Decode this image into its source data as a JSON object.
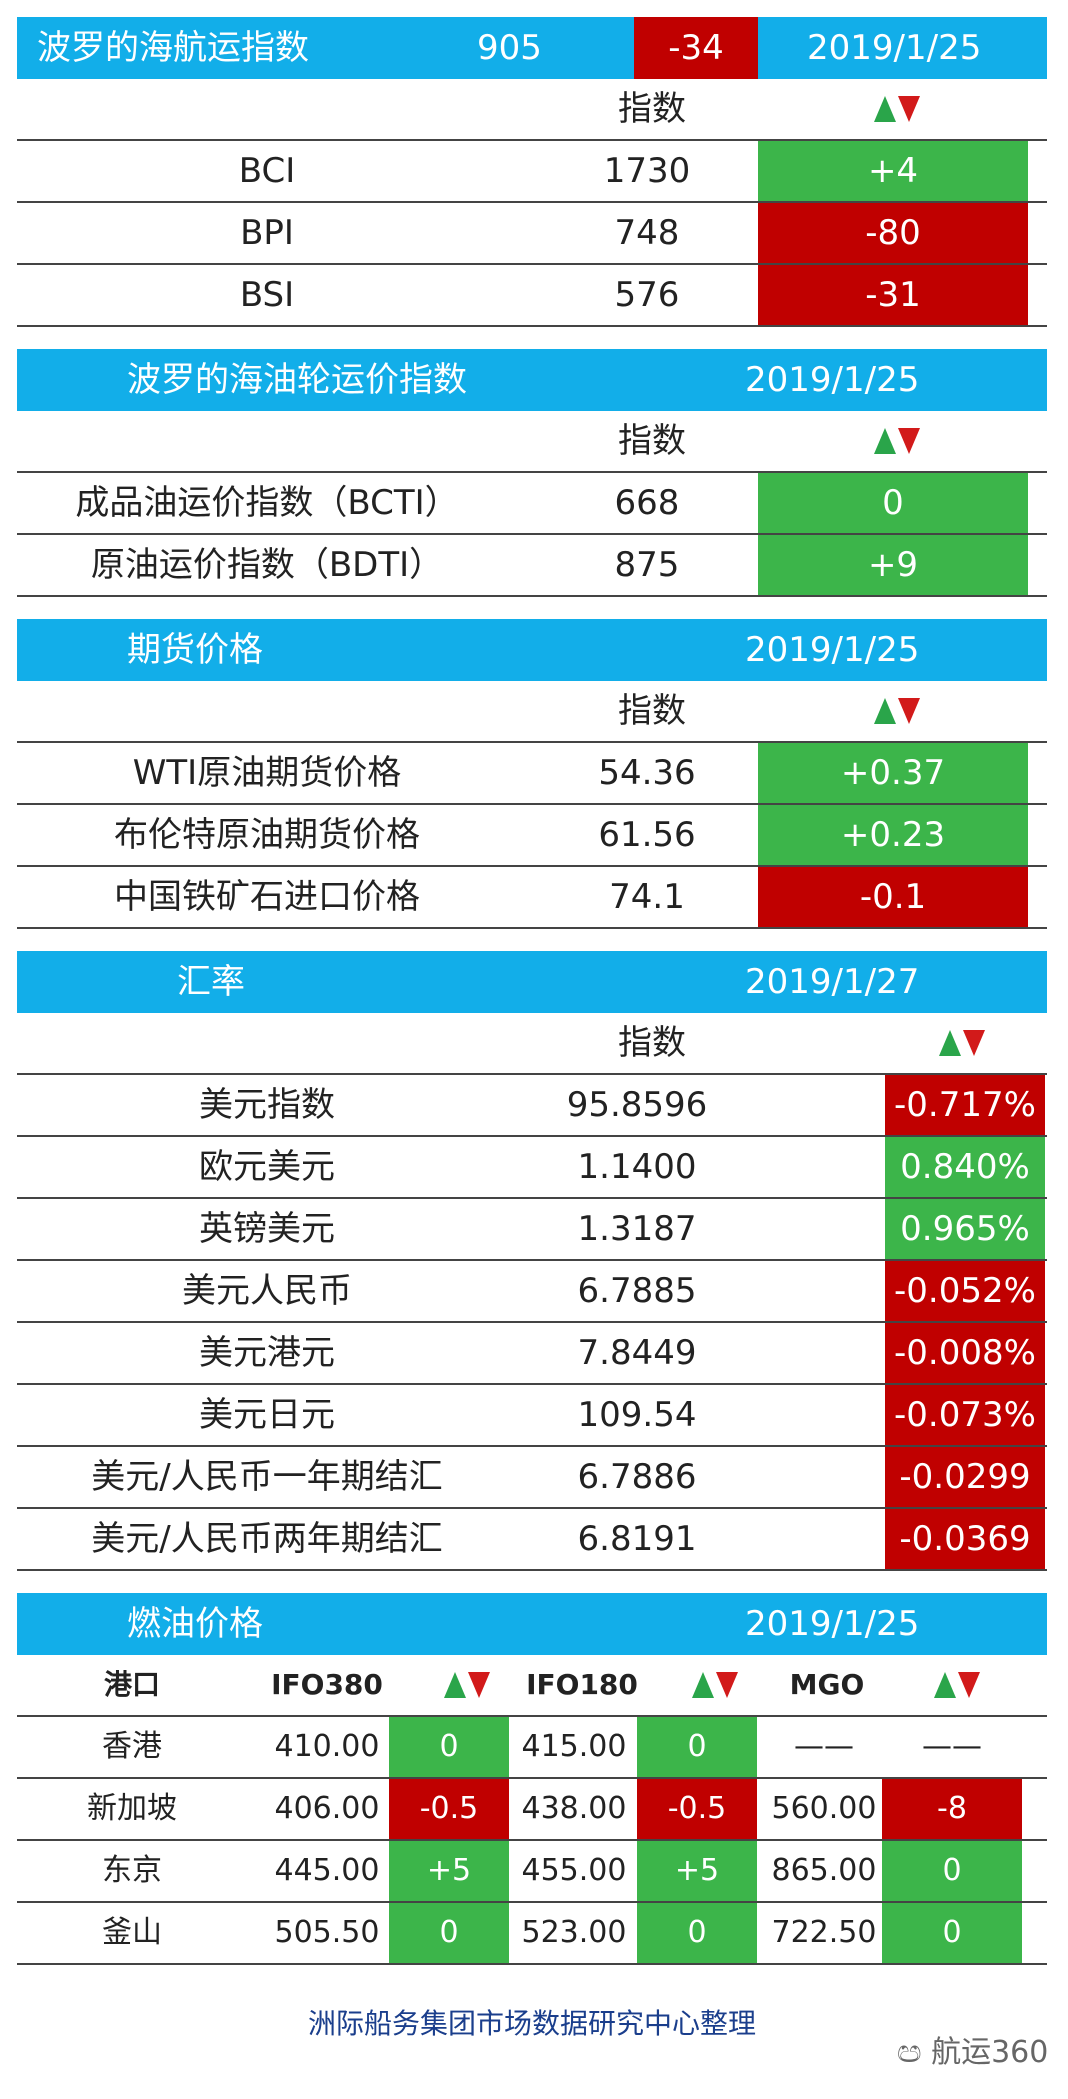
{
  "bdi": {
    "title": "波罗的海航运指数",
    "value": "905",
    "change": "-34",
    "date": "2019/1/25",
    "col_index": "指数",
    "rows": [
      {
        "name": "BCI",
        "value": "1730",
        "change": "+4",
        "dir": "up"
      },
      {
        "name": "BPI",
        "value": "748",
        "change": "-80",
        "dir": "down"
      },
      {
        "name": "BSI",
        "value": "576",
        "change": "-31",
        "dir": "down"
      }
    ]
  },
  "tanker": {
    "title": "波罗的海油轮运价指数",
    "date": "2019/1/25",
    "col_index": "指数",
    "rows": [
      {
        "name": "成品油运价指数（BCTI）",
        "value": "668",
        "change": "0",
        "dir": "up"
      },
      {
        "name": "原油运价指数（BDTI）",
        "value": "875",
        "change": "+9",
        "dir": "up"
      }
    ]
  },
  "futures": {
    "title": "期货价格",
    "date": "2019/1/25",
    "col_index": "指数",
    "rows": [
      {
        "name": "WTI原油期货价格",
        "value": "54.36",
        "change": "+0.37",
        "dir": "up"
      },
      {
        "name": "布伦特原油期货价格",
        "value": "61.56",
        "change": "+0.23",
        "dir": "up"
      },
      {
        "name": "中国铁矿石进口价格",
        "value": "74.1",
        "change": "-0.1",
        "dir": "down"
      }
    ]
  },
  "fx": {
    "title": "汇率",
    "date": "2019/1/27",
    "col_index": "指数",
    "rows": [
      {
        "name": "美元指数",
        "value": "95.8596",
        "change": "-0.717%",
        "dir": "down"
      },
      {
        "name": "欧元美元",
        "value": "1.1400",
        "change": "0.840%",
        "dir": "up"
      },
      {
        "name": "英镑美元",
        "value": "1.3187",
        "change": "0.965%",
        "dir": "up"
      },
      {
        "name": "美元人民币",
        "value": "6.7885",
        "change": "-0.052%",
        "dir": "down"
      },
      {
        "name": "美元港元",
        "value": "7.8449",
        "change": "-0.008%",
        "dir": "down"
      },
      {
        "name": "美元日元",
        "value": "109.54",
        "change": "-0.073%",
        "dir": "down"
      },
      {
        "name": "美元/人民币一年期结汇",
        "value": "6.7886",
        "change": "-0.0299",
        "dir": "down"
      },
      {
        "name": "美元/人民币两年期结汇",
        "value": "6.8191",
        "change": "-0.0369",
        "dir": "down"
      }
    ]
  },
  "fuel": {
    "title": "燃油价格",
    "date": "2019/1/25",
    "headers": {
      "port": "港口",
      "ifo380": "IFO380",
      "ifo180": "IFO180",
      "mgo": "MGO"
    },
    "rows": [
      {
        "port": "香港",
        "ifo380": "410.00",
        "ifo380_chg": "0",
        "ifo380_dir": "up",
        "ifo180": "415.00",
        "ifo180_chg": "0",
        "ifo180_dir": "up",
        "mgo": "——",
        "mgo_chg": "——",
        "mgo_dir": "none"
      },
      {
        "port": "新加坡",
        "ifo380": "406.00",
        "ifo380_chg": "-0.5",
        "ifo380_dir": "down",
        "ifo180": "438.00",
        "ifo180_chg": "-0.5",
        "ifo180_dir": "down",
        "mgo": "560.00",
        "mgo_chg": "-8",
        "mgo_dir": "down"
      },
      {
        "port": "东京",
        "ifo380": "445.00",
        "ifo380_chg": "+5",
        "ifo380_dir": "up",
        "ifo180": "455.00",
        "ifo180_chg": "+5",
        "ifo180_dir": "up",
        "mgo": "865.00",
        "mgo_chg": "0",
        "mgo_dir": "up"
      },
      {
        "port": "釜山",
        "ifo380": "505.50",
        "ifo380_chg": "0",
        "ifo380_dir": "up",
        "ifo180": "523.00",
        "ifo180_chg": "0",
        "ifo180_dir": "up",
        "mgo": "722.50",
        "mgo_chg": "0",
        "mgo_dir": "up"
      }
    ]
  },
  "footer": "洲际船务集团市场数据研究中心整理",
  "watermark": "航运360",
  "colors": {
    "header_blue": "#12aee9",
    "up_green": "#3cb54a",
    "down_red": "#c00000"
  }
}
